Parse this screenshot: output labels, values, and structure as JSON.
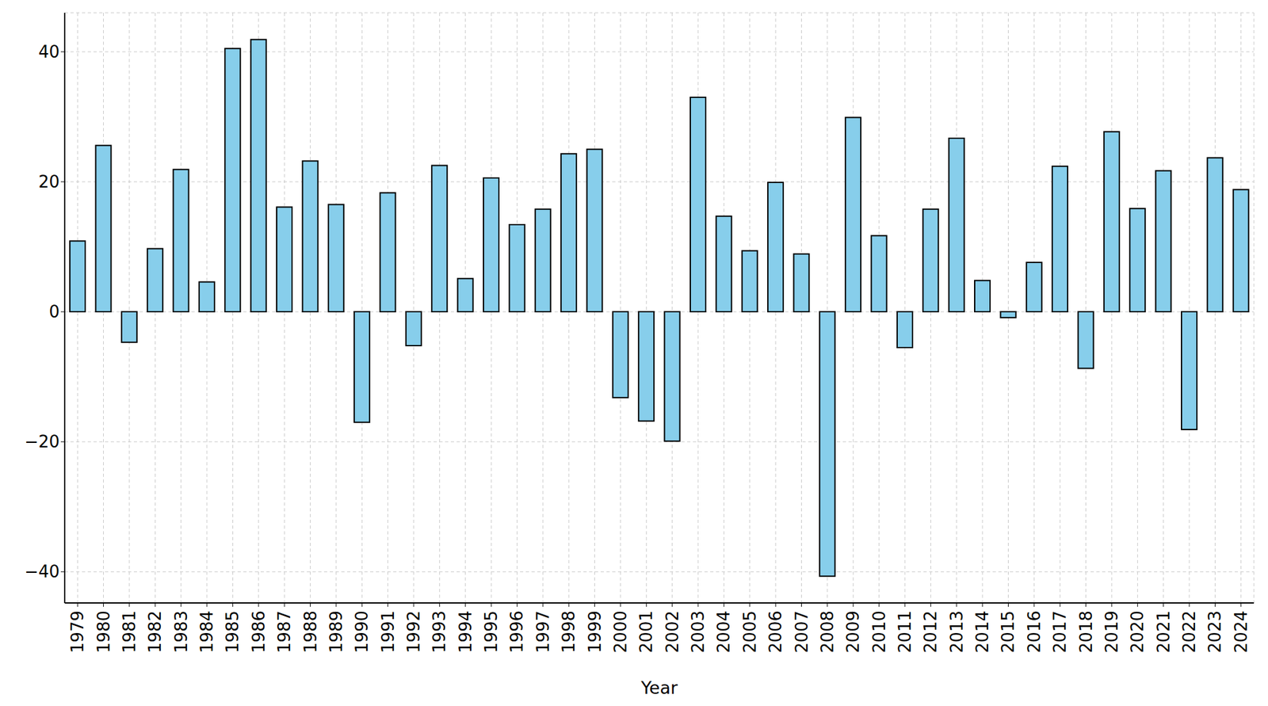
{
  "chart_data": {
    "type": "bar",
    "x_label": "Year",
    "categories": [
      "1979",
      "1980",
      "1981",
      "1982",
      "1983",
      "1984",
      "1985",
      "1986",
      "1987",
      "1988",
      "1989",
      "1990",
      "1991",
      "1992",
      "1993",
      "1994",
      "1995",
      "1996",
      "1997",
      "1998",
      "1999",
      "2000",
      "2001",
      "2002",
      "2003",
      "2004",
      "2005",
      "2006",
      "2007",
      "2008",
      "2009",
      "2010",
      "2011",
      "2012",
      "2013",
      "2014",
      "2015",
      "2016",
      "2017",
      "2018",
      "2019",
      "2020",
      "2021",
      "2022",
      "2023",
      "2024"
    ],
    "values": [
      10.9,
      25.6,
      -4.7,
      9.7,
      21.9,
      4.6,
      40.5,
      41.9,
      16.1,
      23.2,
      16.5,
      -17.0,
      18.3,
      -5.2,
      22.5,
      5.1,
      20.6,
      13.4,
      15.8,
      24.3,
      25.0,
      -13.2,
      -16.8,
      -19.9,
      33.0,
      14.7,
      9.4,
      19.9,
      8.9,
      -40.7,
      29.9,
      11.7,
      -5.5,
      15.8,
      26.7,
      4.8,
      -0.9,
      7.6,
      22.4,
      -8.7,
      27.7,
      15.9,
      21.7,
      -18.1,
      23.7,
      18.8
    ],
    "color": "#87ceeb",
    "ylim": [
      -44.8,
      46
    ],
    "yticks": [
      {
        "value": -40,
        "label": "−40"
      },
      {
        "value": -20,
        "label": "−20"
      },
      0,
      20,
      40
    ],
    "grid": true
  }
}
